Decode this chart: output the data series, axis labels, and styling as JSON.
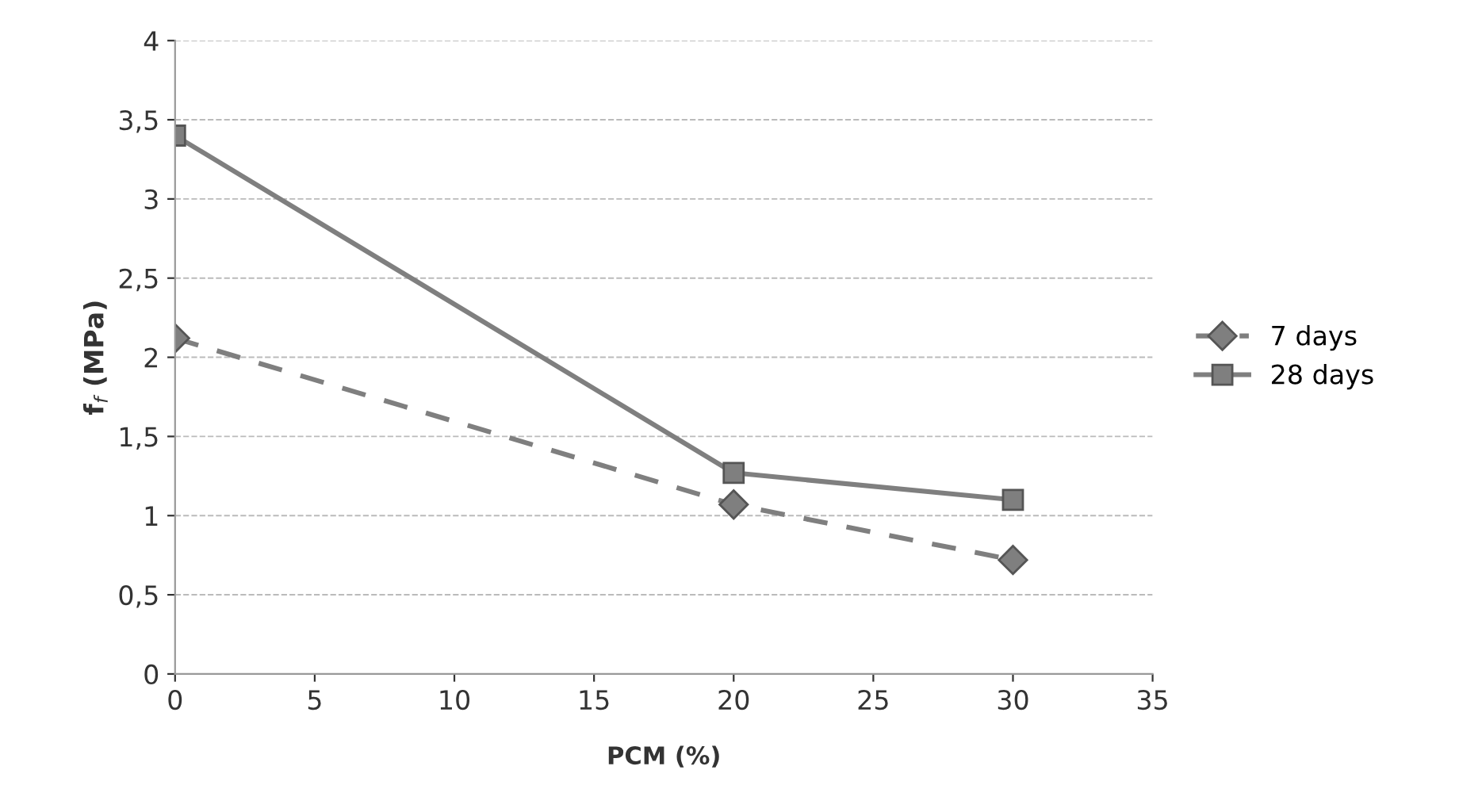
{
  "chart_data": {
    "type": "line",
    "xlabel": "PCM (%)",
    "ylabel": "f$_{f}$ (MPa)",
    "x": [
      0,
      20,
      30
    ],
    "series": [
      {
        "name": "7 days",
        "color": "#7f7f7f",
        "values": [
          2.12,
          1.07,
          0.72
        ],
        "marker": "diamond",
        "line_style": "dashed"
      },
      {
        "name": "28 days",
        "color": "#7f7f7f",
        "values": [
          3.4,
          1.27,
          1.1
        ],
        "marker": "square",
        "line_style": "solid"
      }
    ],
    "xlim": [
      0,
      35
    ],
    "xticks": [
      0,
      5,
      10,
      15,
      20,
      25,
      30,
      35
    ],
    "ylim": [
      0,
      4
    ],
    "yticks": [
      0,
      {
        "value": 0.5,
        "label": "0,5"
      },
      1,
      {
        "value": 1.5,
        "label": "1,5"
      },
      2,
      {
        "value": 2.5,
        "label": "2,5"
      },
      3,
      {
        "value": 3.5,
        "label": "3,5"
      },
      4
    ],
    "grid": "y",
    "legend": "right"
  }
}
